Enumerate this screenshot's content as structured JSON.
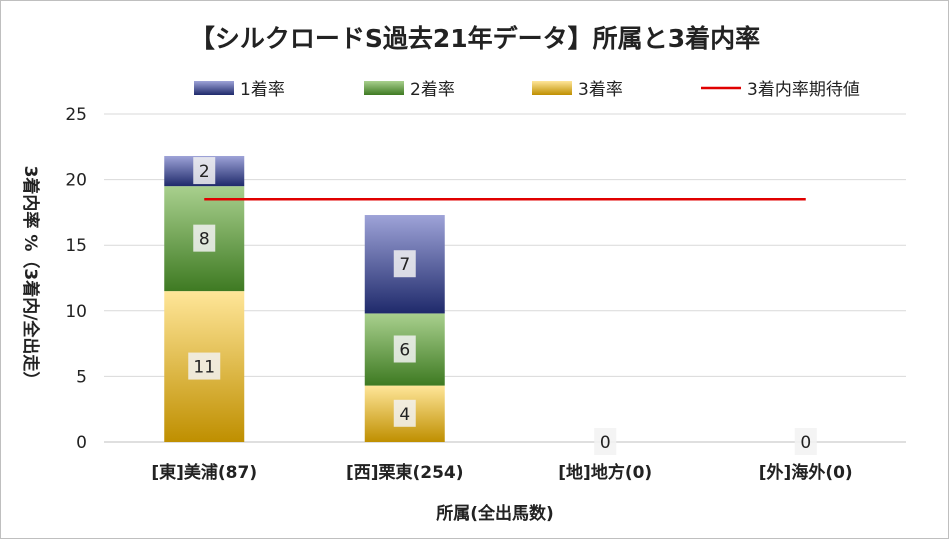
{
  "chart_data": {
    "type": "bar",
    "stacked": true,
    "title": "【シルクロードS過去21年データ】所属と3着内率",
    "xlabel": "所属(全出馬数)",
    "ylabel": "3着内率 %（3着内/全出走）",
    "ylim": [
      0,
      25
    ],
    "yticks": [
      0,
      5,
      10,
      15,
      20,
      25
    ],
    "grid": true,
    "legend_position": "top",
    "categories": [
      "[東]美浦(87)",
      "[西]栗東(254)",
      "[地]地方(0)",
      "[外]海外(0)"
    ],
    "series": [
      {
        "name": "1着率",
        "values": [
          2.3,
          7.5,
          0,
          0
        ],
        "labels": [
          "2",
          "7",
          "0",
          "0"
        ],
        "colors": [
          "#9ea3d8",
          "#1f2a6b"
        ]
      },
      {
        "name": "2着率",
        "values": [
          8.0,
          5.5,
          0,
          0
        ],
        "labels": [
          "8",
          "6",
          "",
          ""
        ],
        "colors": [
          "#a9d08e",
          "#3e7a22"
        ]
      },
      {
        "name": "3着率",
        "values": [
          11.5,
          4.3,
          0,
          0
        ],
        "labels": [
          "11",
          "4",
          "",
          ""
        ],
        "colors": [
          "#ffe699",
          "#bf8f00"
        ]
      }
    ],
    "reference_line": {
      "name": "3着内率期待値",
      "value": 18.5,
      "color": "#e00000"
    }
  }
}
